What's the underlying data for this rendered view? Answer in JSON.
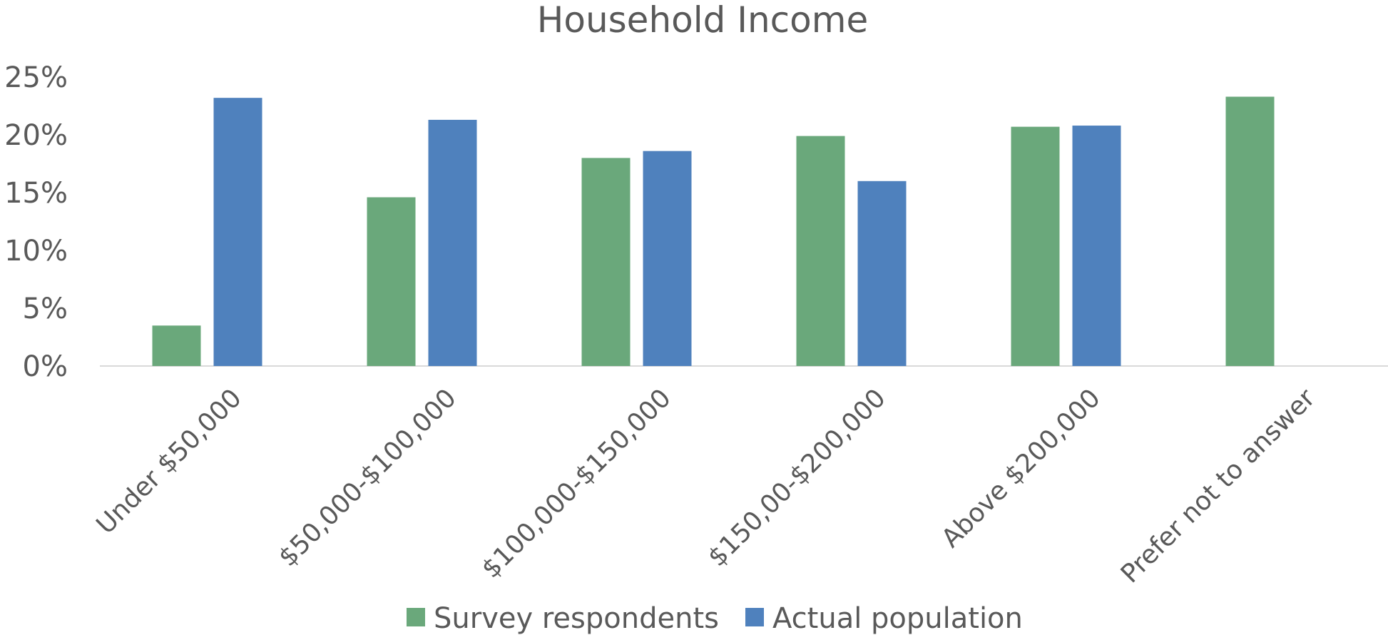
{
  "chart_data": {
    "type": "bar",
    "title": "Household Income",
    "xlabel": "",
    "ylabel": "",
    "categories": [
      "Under $50,000",
      "$50,000-$100,000",
      "$100,000-$150,000",
      "$150,00-$200,000",
      "Above $200,000",
      "Prefer not to answer"
    ],
    "series": [
      {
        "name": "Survey respondents",
        "color": "#6aa87b",
        "values": [
          3.5,
          14.6,
          18.0,
          19.9,
          20.7,
          23.3
        ]
      },
      {
        "name": "Actual population",
        "color": "#4f81bd",
        "values": [
          23.2,
          21.3,
          18.6,
          16.0,
          20.8,
          null
        ]
      }
    ],
    "ylim": [
      0,
      25
    ],
    "yticks": [
      "0%",
      "5%",
      "10%",
      "15%",
      "20%",
      "25%"
    ],
    "grid": false,
    "legend_position": "bottom"
  }
}
